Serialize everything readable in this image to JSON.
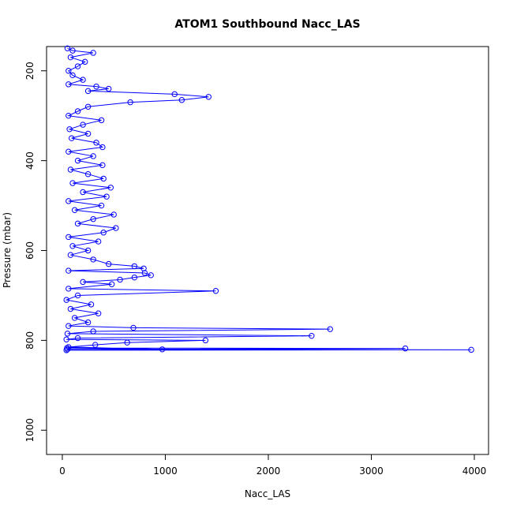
{
  "chart_data": {
    "type": "line",
    "title": "ATOM1 Southbound Nacc_LAS",
    "x_label": "Nacc_LAS",
    "y_label": "Pressure (mbar)",
    "color": "#0000ff",
    "markers": true,
    "y_inverted": true,
    "xlim": [
      -153,
      4138
    ],
    "ylim": [
      146,
      1054
    ],
    "xticks": [
      0,
      1000,
      2000,
      3000,
      4000
    ],
    "yticks": [
      200,
      400,
      600,
      800,
      1000
    ],
    "x": [
      40,
      3970,
      50,
      3330,
      45,
      970,
      60,
      320,
      630,
      1390,
      40,
      150,
      2420,
      50,
      300,
      2600,
      690,
      60,
      250,
      120,
      350,
      80,
      280,
      40,
      150,
      1490,
      60,
      480,
      200,
      560,
      700,
      860,
      800,
      60,
      790,
      700,
      450,
      300,
      80,
      250,
      100,
      350,
      60,
      400,
      520,
      150,
      300,
      500,
      120,
      380,
      60,
      430,
      200,
      470,
      100,
      400,
      250,
      80,
      390,
      150,
      300,
      60,
      390,
      330,
      90,
      250,
      70,
      200,
      380,
      60,
      150,
      250,
      660,
      1160,
      1420,
      1090,
      250,
      450,
      330,
      60,
      200,
      100,
      60,
      150,
      220,
      80,
      300,
      100,
      50
    ],
    "values": [
      822,
      821,
      820,
      818,
      817,
      820,
      815,
      810,
      805,
      800,
      798,
      795,
      790,
      785,
      780,
      775,
      772,
      768,
      760,
      750,
      740,
      730,
      720,
      710,
      700,
      690,
      685,
      675,
      670,
      665,
      660,
      655,
      650,
      645,
      640,
      635,
      630,
      620,
      610,
      600,
      590,
      580,
      570,
      560,
      550,
      540,
      530,
      520,
      510,
      500,
      490,
      480,
      470,
      460,
      450,
      440,
      430,
      420,
      410,
      400,
      390,
      380,
      370,
      360,
      350,
      340,
      330,
      320,
      310,
      300,
      290,
      280,
      270,
      265,
      258,
      252,
      245,
      240,
      235,
      230,
      220,
      210,
      200,
      190,
      180,
      170,
      160,
      155,
      150
    ]
  }
}
